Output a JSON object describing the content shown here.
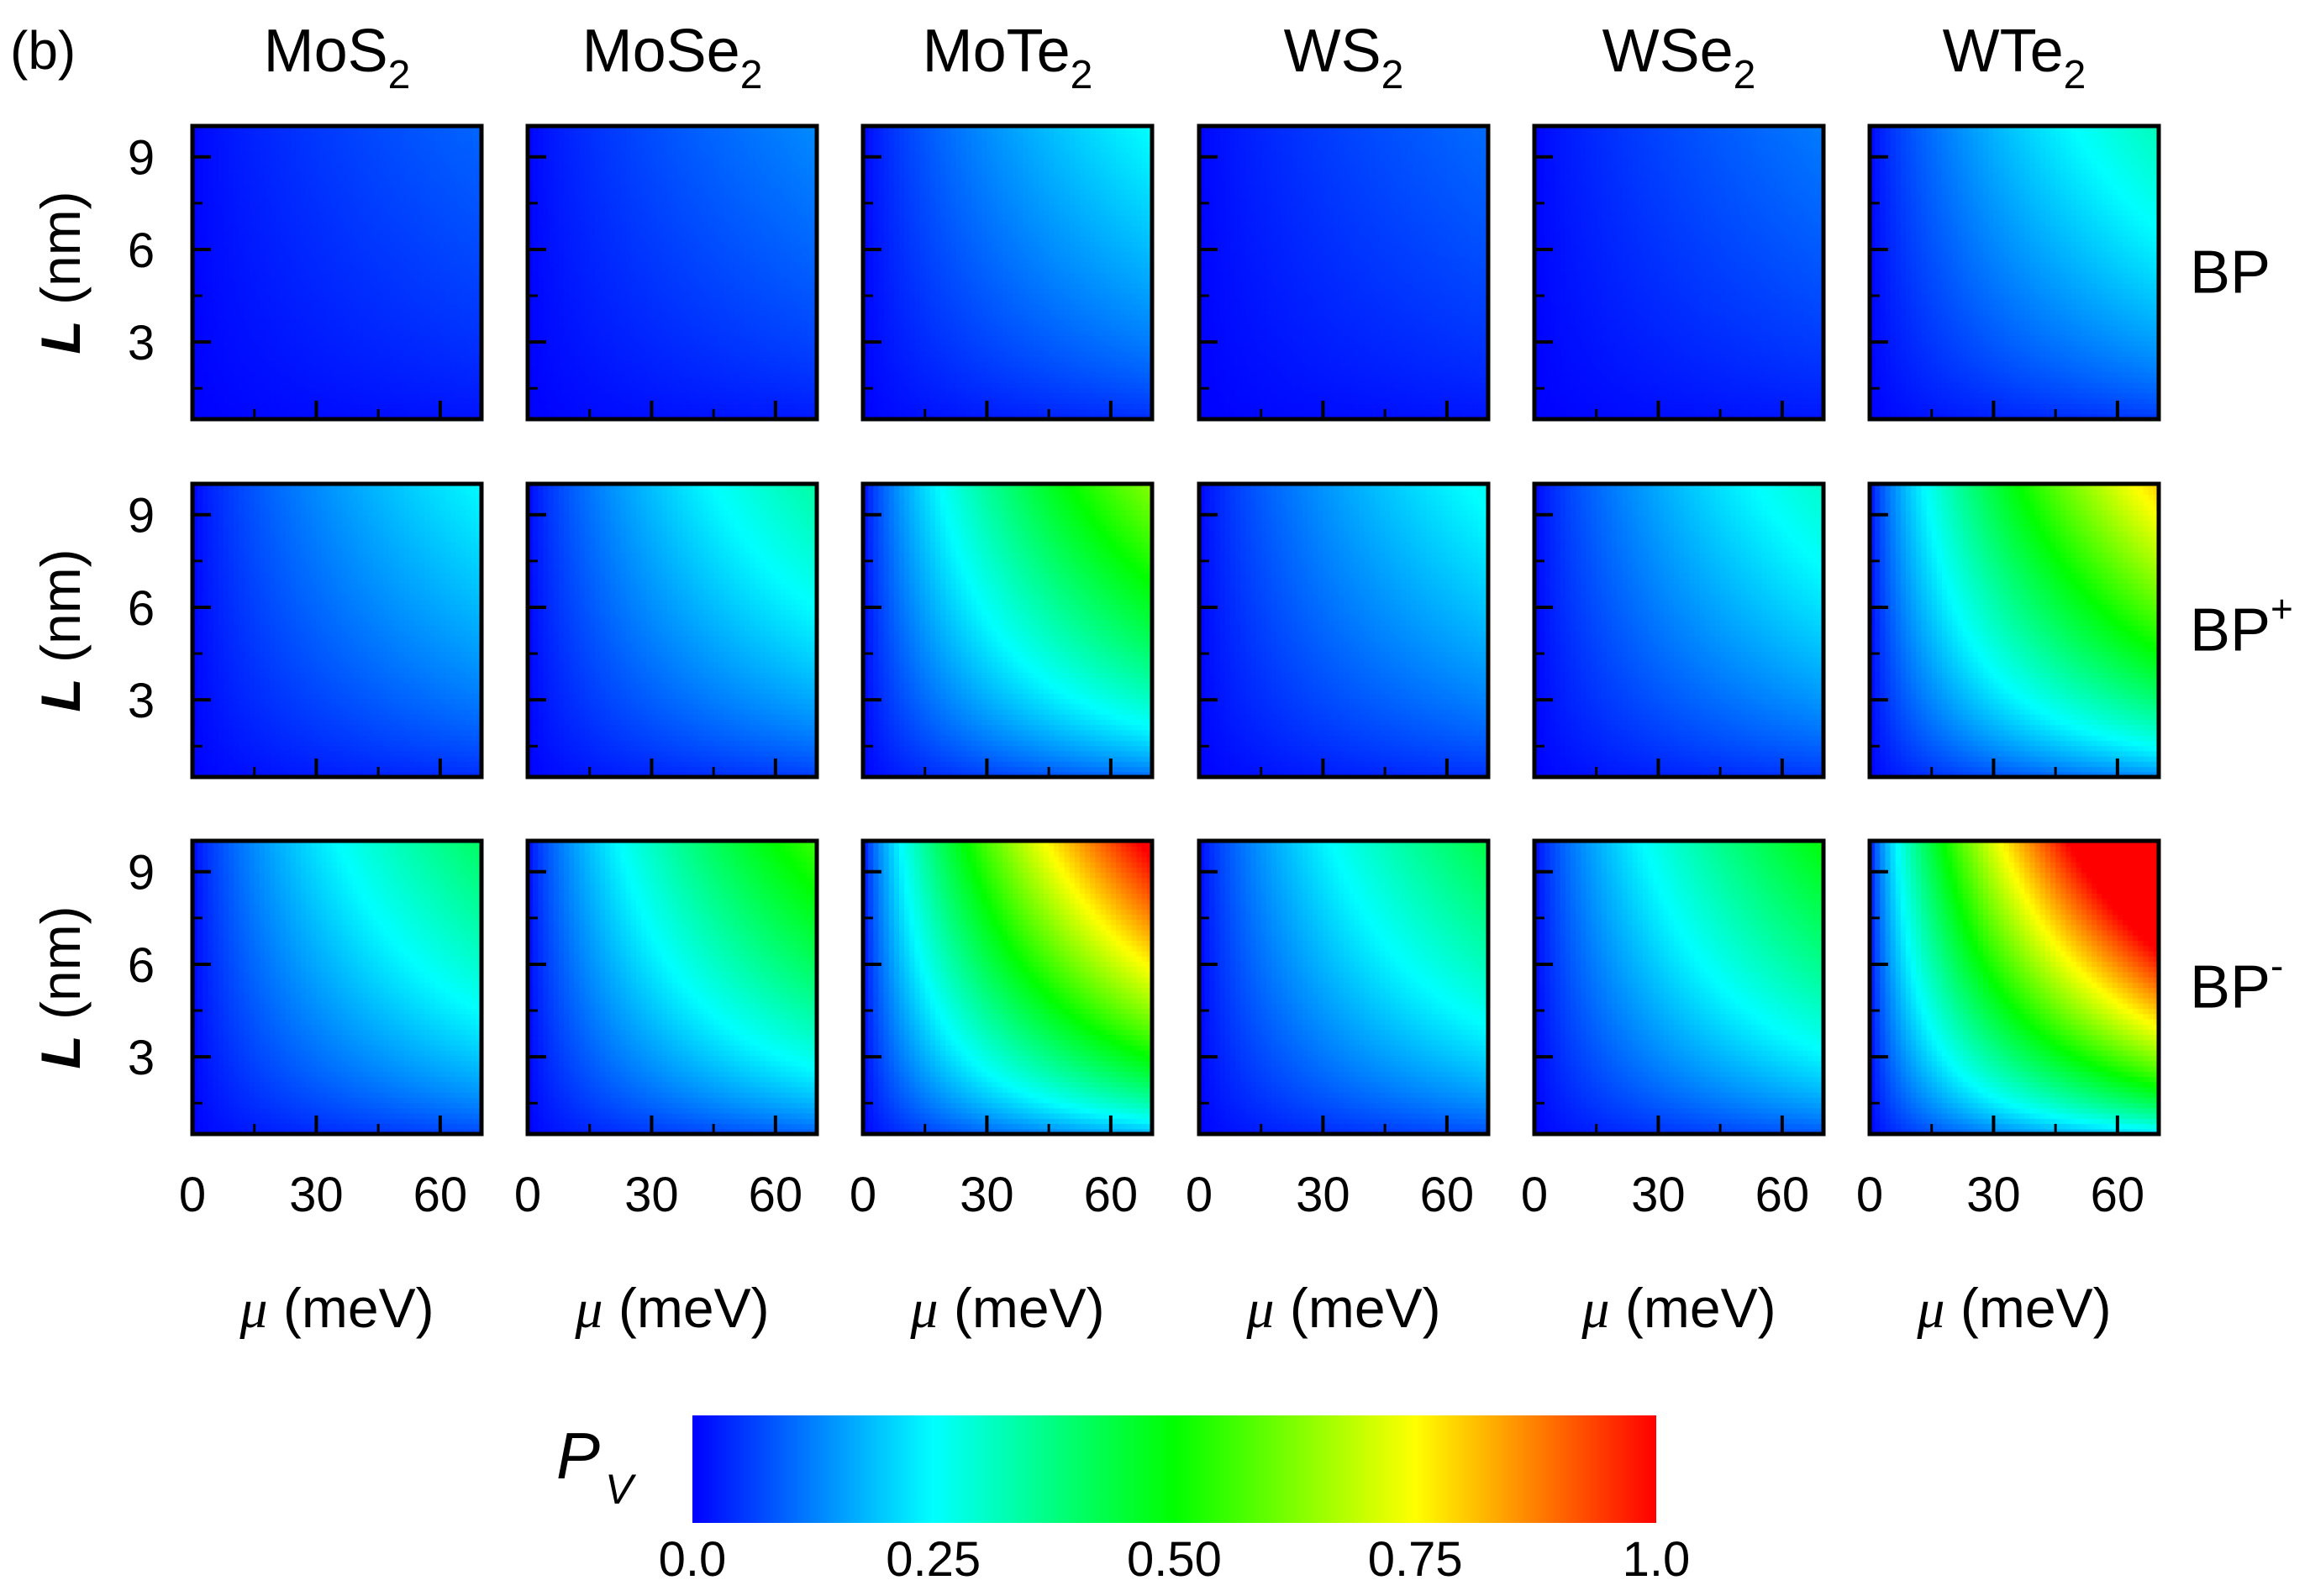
{
  "panel_label": "(b)",
  "chart_data": {
    "type": "heatmap",
    "title": "",
    "panel_label": "(b)",
    "columns": [
      {
        "name": "MoS",
        "sub": "2",
        "strength": 0.45
      },
      {
        "name": "MoSe",
        "sub": "2",
        "strength": 0.62
      },
      {
        "name": "MoTe",
        "sub": "2",
        "strength": 1.15
      },
      {
        "name": "WS",
        "sub": "2",
        "strength": 0.48
      },
      {
        "name": "WSe",
        "sub": "2",
        "strength": 0.55
      },
      {
        "name": "WTe",
        "sub": "2",
        "strength": 1.45
      }
    ],
    "rows": [
      {
        "name": "BP",
        "sup": "",
        "strength": 0.22
      },
      {
        "name": "BP",
        "sup": "+",
        "strength": 0.55
      },
      {
        "name": "BP",
        "sup": "-",
        "strength": 0.9
      }
    ],
    "xlabel_symbol": "μ",
    "xlabel_unit": " (meV)",
    "xlim": [
      0,
      70
    ],
    "xticks": [
      "0",
      "30",
      "60"
    ],
    "xtick_values": [
      0,
      30,
      60
    ],
    "ylabel_symbol": "L",
    "ylabel_unit": " (nm)",
    "ylim": [
      0.5,
      10
    ],
    "yticks": [
      "3",
      "6",
      "9"
    ],
    "ytick_values": [
      3,
      6,
      9
    ],
    "colorbar": {
      "label_symbol": "P",
      "label_sub": "V",
      "range": [
        0,
        1
      ],
      "ticks": [
        "0.0",
        "0.25",
        "0.50",
        "0.75",
        "1.0"
      ],
      "tick_values": [
        0,
        0.25,
        0.5,
        0.75,
        1.0
      ],
      "colors": [
        "#0000ff",
        "#00ffff",
        "#00ff00",
        "#ffff00",
        "#ff0000"
      ]
    }
  }
}
